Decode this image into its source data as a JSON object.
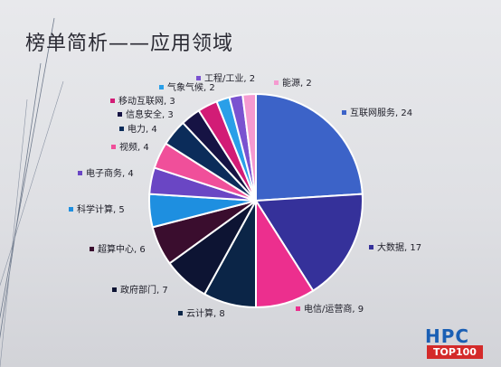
{
  "title": "榜单简析——应用领域",
  "logo": {
    "main": "HPC",
    "sub": "TOP100"
  },
  "chart_data": {
    "type": "pie",
    "title": "",
    "start_angle_deg": -90,
    "direction": "clockwise",
    "slices": [
      {
        "label": "互联网服务",
        "value": 24,
        "text": "互联网服务, 24",
        "color": "#3c63c8"
      },
      {
        "label": "大数据",
        "value": 17,
        "text": "大数据, 17",
        "color": "#35319a"
      },
      {
        "label": "电信/运营商",
        "value": 9,
        "text": "电信/运营商, 9",
        "color": "#ec2f8e"
      },
      {
        "label": "云计算",
        "value": 8,
        "text": "云计算, 8",
        "color": "#0b2547"
      },
      {
        "label": "政府部门",
        "value": 7,
        "text": "政府部门, 7",
        "color": "#0d1433"
      },
      {
        "label": "超算中心",
        "value": 6,
        "text": "超算中心, 6",
        "color": "#3a0d2e"
      },
      {
        "label": "科学计算",
        "value": 5,
        "text": "科学计算, 5",
        "color": "#1e8fe0"
      },
      {
        "label": "电子商务",
        "value": 4,
        "text": "电子商务, 4",
        "color": "#6a46c4"
      },
      {
        "label": "视频",
        "value": 4,
        "text": "视频, 4",
        "color": "#f04f9a"
      },
      {
        "label": "电力",
        "value": 4,
        "text": "电力, 4",
        "color": "#0b2c5a"
      },
      {
        "label": "信息安全",
        "value": 3,
        "text": "信息安全, 3",
        "color": "#161344"
      },
      {
        "label": "移动互联网",
        "value": 3,
        "text": "移动互联网, 3",
        "color": "#d21c76"
      },
      {
        "label": "气象气候",
        "value": 2,
        "text": "气象气候, 2",
        "color": "#2a9fe8"
      },
      {
        "label": "工程/工业",
        "value": 2,
        "text": "工程/工业, 2",
        "color": "#7a52d0"
      },
      {
        "label": "能源",
        "value": 2,
        "text": "能源, 2",
        "color": "#f59ad0"
      }
    ]
  }
}
